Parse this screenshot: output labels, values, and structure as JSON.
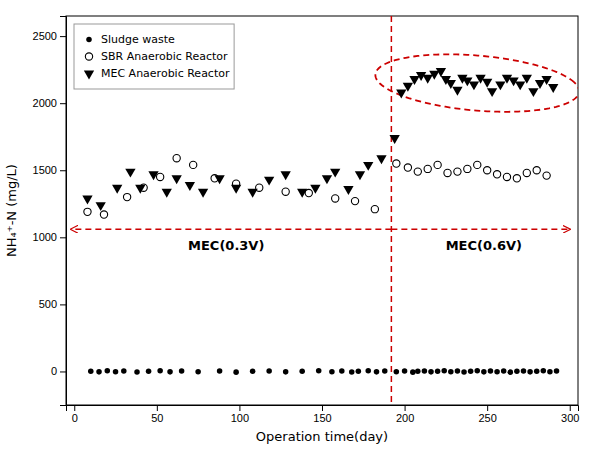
{
  "chart_data": {
    "type": "scatter",
    "xlabel": "Operation time(day)",
    "ylabel": "NH₄⁺-N (mg/L)",
    "xlim": [
      -5,
      305
    ],
    "ylim": [
      -250,
      2650
    ],
    "xticks": [
      0,
      50,
      100,
      150,
      200,
      250,
      300
    ],
    "yticks": [
      0,
      500,
      1000,
      1500,
      2000,
      2500
    ],
    "grid": false,
    "legend": "upper left",
    "series": [
      {
        "name": "Sludge waste",
        "type": "scatter",
        "marker": "circle",
        "color": "#000000",
        "x": [
          10,
          15,
          20,
          25,
          30,
          38,
          45,
          52,
          58,
          65,
          75,
          88,
          98,
          108,
          118,
          128,
          138,
          148,
          156,
          162,
          168,
          172,
          178,
          183,
          188,
          195,
          200,
          205,
          208,
          212,
          216,
          220,
          224,
          228,
          232,
          236,
          240,
          244,
          248,
          252,
          256,
          260,
          264,
          268,
          272,
          276,
          280,
          284,
          288,
          292
        ],
        "values": [
          2,
          -3,
          5,
          -2,
          3,
          -4,
          2,
          5,
          -3,
          4,
          -2,
          3,
          -5,
          2,
          4,
          -3,
          2,
          5,
          -2,
          3,
          -4,
          2,
          5,
          -3,
          4,
          -2,
          3,
          -5,
          2,
          4,
          -3,
          2,
          5,
          -2,
          3,
          -4,
          2,
          5,
          -3,
          4,
          -2,
          3,
          -5,
          2,
          4,
          -3,
          2,
          5,
          -2,
          3
        ]
      },
      {
        "name": "SBR Anaerobic Reactor",
        "type": "scatter",
        "marker": "circle-open",
        "color": "#000000",
        "x": [
          8,
          18,
          32,
          42,
          52,
          62,
          72,
          85,
          98,
          112,
          128,
          142,
          158,
          170,
          182,
          195,
          202,
          208,
          214,
          220,
          226,
          232,
          238,
          244,
          250,
          256,
          262,
          268,
          274,
          280,
          286
        ],
        "values": [
          1190,
          1170,
          1300,
          1370,
          1450,
          1590,
          1540,
          1440,
          1400,
          1370,
          1340,
          1330,
          1290,
          1270,
          1210,
          1550,
          1520,
          1490,
          1510,
          1540,
          1480,
          1490,
          1510,
          1540,
          1500,
          1470,
          1450,
          1440,
          1480,
          1500,
          1460
        ]
      },
      {
        "name": "MEC Anaerobic Reactor",
        "type": "scatter",
        "marker": "triangle-down",
        "color": "#000000",
        "x": [
          8,
          16,
          26,
          34,
          40,
          48,
          56,
          62,
          70,
          78,
          88,
          98,
          108,
          118,
          128,
          138,
          146,
          153,
          158,
          166,
          173,
          178,
          186,
          194,
          198,
          202,
          206,
          210,
          214,
          218,
          222,
          225,
          228,
          232,
          235,
          238,
          242,
          246,
          250,
          253,
          258,
          262,
          266,
          270,
          274,
          278,
          282,
          286,
          290
        ],
        "values": [
          1290,
          1240,
          1370,
          1490,
          1370,
          1470,
          1340,
          1440,
          1390,
          1340,
          1440,
          1370,
          1340,
          1430,
          1470,
          1340,
          1370,
          1440,
          1490,
          1360,
          1470,
          1540,
          1590,
          1740,
          2080,
          2130,
          2180,
          2210,
          2190,
          2220,
          2240,
          2180,
          2150,
          2100,
          2190,
          2170,
          2140,
          2190,
          2160,
          2090,
          2140,
          2190,
          2170,
          2140,
          2190,
          2090,
          2150,
          2180,
          2120
        ]
      }
    ],
    "reference_lines": [
      {
        "axis": "x",
        "value": 192,
        "color": "#cc0000",
        "line_style": "dashed"
      }
    ],
    "arrows": [
      {
        "y": 1060,
        "x_start": 192,
        "x_end": -2,
        "color": "#cc0000",
        "line_style": "dashed"
      },
      {
        "y": 1060,
        "x_start": 192,
        "x_end": 300,
        "color": "#cc0000",
        "line_style": "dashed"
      }
    ],
    "annotations": [
      {
        "text": "MEC(0.3V)",
        "x": 92,
        "y": 940
      },
      {
        "text": "MEC(0.6V)",
        "x": 248,
        "y": 940
      }
    ],
    "ellipses": [
      {
        "cx": 244,
        "cy": 2150,
        "width": 118,
        "height": 430,
        "angle": 5,
        "color": "#cc0000",
        "line_style": "dashed"
      }
    ]
  }
}
